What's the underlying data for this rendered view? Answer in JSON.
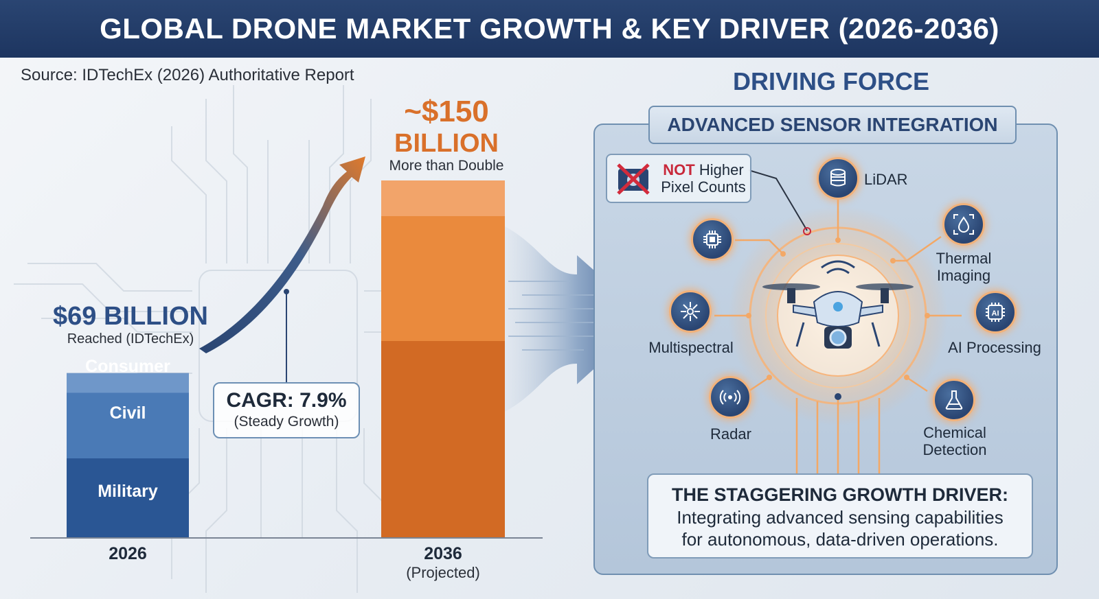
{
  "title": "GLOBAL DRONE MARKET GROWTH & KEY DRIVER (2026-2036)",
  "source": "Source: IDTechEx (2026) Authoritative Report",
  "chart_data": {
    "type": "bar",
    "categories": [
      "2026",
      "2036"
    ],
    "category_subs": [
      "",
      "(Projected)"
    ],
    "values": [
      69,
      150
    ],
    "unit": "Billion USD",
    "segments_2026": [
      "Consumer",
      "Civil",
      "Military"
    ],
    "value_labels": {
      "v2026_main": "$69 BILLION",
      "v2026_sub": "Reached (IDTechEx)",
      "v2036_main": "~$150",
      "v2036_main2": "BILLION",
      "v2036_sub": "More than Double"
    },
    "cagr": {
      "main": "CAGR: 7.9%",
      "sub": "(Steady Growth)"
    },
    "colors": {
      "bar_2026": "#2d5a96",
      "bar_2036": "#e07a2c",
      "arrow": "#d9702a"
    }
  },
  "driving_force": {
    "title": "DRIVING FORCE",
    "panel_title": "ADVANCED SENSOR INTEGRATION",
    "not_box": {
      "not": "NOT",
      "higher": "Higher",
      "line2": "Pixel Counts"
    },
    "sensors": [
      {
        "name": "LiDAR",
        "icon": "lidar-icon"
      },
      {
        "name": "Thermal",
        "name2": "Imaging",
        "icon": "thermal-icon"
      },
      {
        "name": "AI Processing",
        "icon": "ai-chip-icon"
      },
      {
        "name": "Chemical",
        "name2": "Detection",
        "icon": "flask-icon"
      },
      {
        "name": "Radar",
        "icon": "radar-icon"
      },
      {
        "name": "Multispectral",
        "icon": "multispectral-icon"
      },
      {
        "name": "",
        "icon": "processor-icon"
      }
    ],
    "driver": {
      "title": "THE STAGGERING GROWTH DRIVER:",
      "line1": "Integrating advanced sensing capabilities",
      "line2": "for autonomous, data-driven operations."
    },
    "colors": {
      "accent": "#2a4572",
      "glow": "#f2b27a"
    }
  }
}
